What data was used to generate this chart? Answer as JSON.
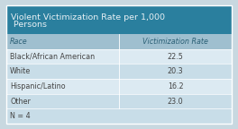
{
  "title_line1": "Violent Victimization Rate per 1,000",
  "title_line2": " Persons",
  "header_bg": "#2a7f9e",
  "header_text_color": "#e8f0f4",
  "col1_header": "Race",
  "col2_header": "Victimization Rate",
  "rows": [
    [
      "Black/African American",
      "22.5"
    ],
    [
      "White",
      "20.3"
    ],
    [
      "Hispanic/Latino",
      "16.2"
    ],
    [
      "Other",
      "23.0"
    ]
  ],
  "footer": "N = 4",
  "row_bg_odd": "#c8dde8",
  "row_bg_even": "#dceaf2",
  "col_header_bg": "#9fbfcf",
  "border_color": "#8aaabb",
  "text_color_dark": "#444444",
  "text_color_header": "#2a5f75",
  "outer_bg": "#c8d8e0",
  "font_size_title": 6.8,
  "font_size_table": 5.8,
  "col_split": 0.5
}
